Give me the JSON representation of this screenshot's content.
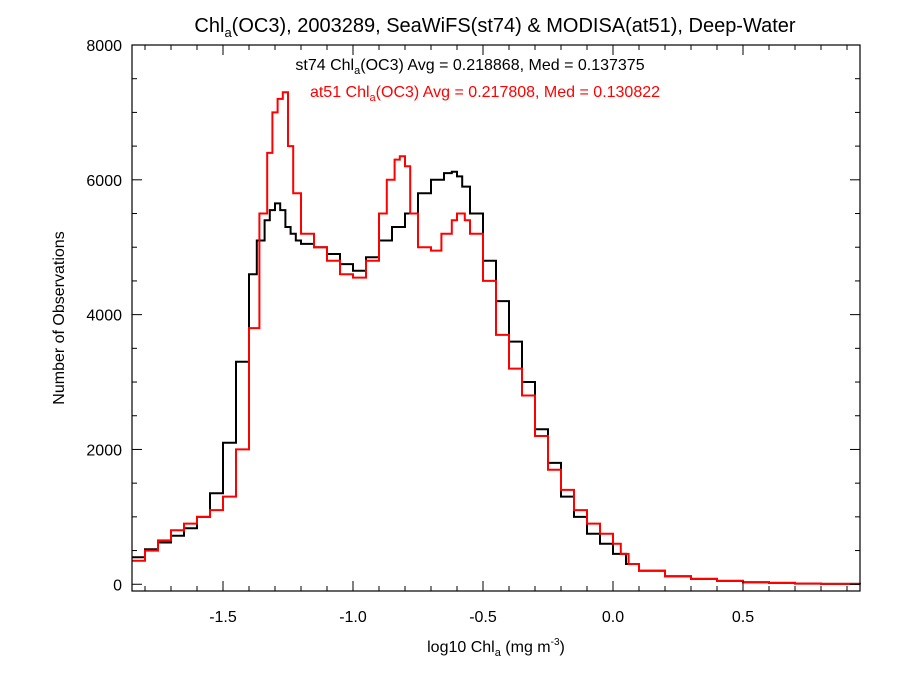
{
  "chart_data": {
    "type": "line",
    "title": {
      "main": "Chl",
      "sub": "a",
      "rest": "(OC3), 2003289, SeaWiFS(st74) & MODISA(at51), Deep-Water"
    },
    "xlabel": {
      "pre": "log10 Chl",
      "sub": "a",
      "mid": " (mg m",
      "sup": "-3",
      "post": ")"
    },
    "ylabel": "Number of Observations",
    "xlim": [
      -1.85,
      0.95
    ],
    "ylim": [
      -100,
      8000
    ],
    "xticks": [
      -1.5,
      -1.0,
      -0.5,
      0.0,
      0.5
    ],
    "xtick_labels": [
      "-1.5",
      "-1.0",
      "-0.5",
      "0.0",
      "0.5"
    ],
    "yticks": [
      0,
      2000,
      4000,
      6000,
      8000
    ],
    "ytick_labels": [
      "0",
      "2000",
      "4000",
      "6000",
      "8000"
    ],
    "grid": false,
    "legend": "top-center",
    "annotations": [
      {
        "pre": "st74 Chl",
        "sub": "a",
        "post": "(OC3) Avg = 0.218868, Med = 0.137375",
        "color": "#000000"
      },
      {
        "pre": "at51 Chl",
        "sub": "a",
        "post": "(OC3) Avg = 0.217808, Med = 0.130822",
        "color": "#ff0000"
      }
    ],
    "series": [
      {
        "color": "#000000",
        "x": [
          -1.85,
          -1.8,
          -1.75,
          -1.7,
          -1.65,
          -1.6,
          -1.55,
          -1.5,
          -1.45,
          -1.4,
          -1.37,
          -1.34,
          -1.32,
          -1.3,
          -1.28,
          -1.26,
          -1.24,
          -1.22,
          -1.2,
          -1.15,
          -1.1,
          -1.05,
          -1.0,
          -0.95,
          -0.9,
          -0.85,
          -0.8,
          -0.75,
          -0.7,
          -0.65,
          -0.62,
          -0.6,
          -0.58,
          -0.55,
          -0.5,
          -0.45,
          -0.4,
          -0.35,
          -0.3,
          -0.25,
          -0.2,
          -0.15,
          -0.1,
          -0.05,
          0.0,
          0.05,
          0.1,
          0.2,
          0.3,
          0.4,
          0.5,
          0.6,
          0.7,
          0.8,
          0.95
        ],
        "y": [
          400,
          520,
          620,
          720,
          830,
          1000,
          1350,
          2100,
          3300,
          4600,
          5100,
          5400,
          5550,
          5650,
          5550,
          5300,
          5200,
          5100,
          5050,
          5000,
          4900,
          4750,
          4650,
          4850,
          5100,
          5300,
          5500,
          5800,
          6000,
          6100,
          6120,
          6050,
          5900,
          5500,
          4800,
          4200,
          3600,
          3000,
          2300,
          1800,
          1300,
          1000,
          750,
          600,
          450,
          300,
          200,
          120,
          80,
          50,
          30,
          20,
          10,
          5,
          0
        ]
      },
      {
        "color": "#ff0000",
        "x": [
          -1.85,
          -1.8,
          -1.75,
          -1.7,
          -1.65,
          -1.6,
          -1.55,
          -1.5,
          -1.45,
          -1.4,
          -1.36,
          -1.33,
          -1.31,
          -1.29,
          -1.27,
          -1.25,
          -1.23,
          -1.2,
          -1.15,
          -1.1,
          -1.05,
          -1.0,
          -0.95,
          -0.9,
          -0.87,
          -0.84,
          -0.82,
          -0.8,
          -0.78,
          -0.75,
          -0.7,
          -0.66,
          -0.62,
          -0.6,
          -0.57,
          -0.55,
          -0.5,
          -0.45,
          -0.4,
          -0.35,
          -0.3,
          -0.25,
          -0.2,
          -0.15,
          -0.1,
          -0.05,
          0.0,
          0.03,
          0.06,
          0.1,
          0.2,
          0.3,
          0.4,
          0.5,
          0.6,
          0.7,
          0.8,
          0.95
        ],
        "y": [
          350,
          500,
          650,
          800,
          900,
          1000,
          1100,
          1300,
          2000,
          3800,
          5500,
          6400,
          7000,
          7200,
          7300,
          6500,
          5800,
          5200,
          5000,
          4800,
          4600,
          4550,
          4800,
          5500,
          6000,
          6300,
          6350,
          6200,
          5500,
          5000,
          4950,
          5200,
          5400,
          5500,
          5400,
          5200,
          4500,
          3700,
          3200,
          2800,
          2200,
          1700,
          1400,
          1100,
          900,
          750,
          600,
          450,
          300,
          200,
          120,
          80,
          50,
          30,
          20,
          12,
          6,
          0
        ]
      }
    ]
  }
}
